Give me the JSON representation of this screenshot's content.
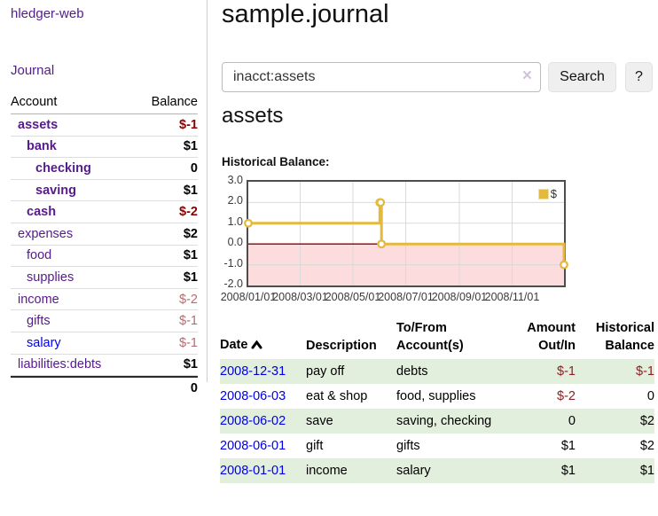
{
  "sidebar": {
    "app_title": "hledger-web",
    "nav": {
      "journal_label": "Journal"
    },
    "table": {
      "account_header": "Account",
      "balance_header": "Balance"
    },
    "accounts": [
      {
        "name": "assets",
        "indent": 0,
        "bold": true,
        "balance": "$-1",
        "balance_style": "negative-strong",
        "link_style": "purple"
      },
      {
        "name": "bank",
        "indent": 1,
        "bold": true,
        "balance": "$1",
        "balance_style": "normal",
        "link_style": "purple"
      },
      {
        "name": "checking",
        "indent": 2,
        "bold": true,
        "balance": "0",
        "balance_style": "normal",
        "link_style": "purple"
      },
      {
        "name": "saving",
        "indent": 2,
        "bold": true,
        "balance": "$1",
        "balance_style": "normal",
        "link_style": "purple"
      },
      {
        "name": "cash",
        "indent": 1,
        "bold": true,
        "balance": "$-2",
        "balance_style": "negative-strong",
        "link_style": "purple"
      },
      {
        "name": "expenses",
        "indent": 0,
        "bold": false,
        "balance": "$2",
        "balance_style": "normal",
        "link_style": "purple"
      },
      {
        "name": "food",
        "indent": 1,
        "bold": false,
        "balance": "$1",
        "balance_style": "normal",
        "link_style": "purple"
      },
      {
        "name": "supplies",
        "indent": 1,
        "bold": false,
        "balance": "$1",
        "balance_style": "normal",
        "link_style": "purple"
      },
      {
        "name": "income",
        "indent": 0,
        "bold": false,
        "balance": "$-2",
        "balance_style": "negative-soft",
        "link_style": "purple"
      },
      {
        "name": "gifts",
        "indent": 1,
        "bold": false,
        "balance": "$-1",
        "balance_style": "negative-soft",
        "link_style": "purple"
      },
      {
        "name": "salary",
        "indent": 1,
        "bold": false,
        "balance": "$-1",
        "balance_style": "negative-soft",
        "link_style": "blue"
      },
      {
        "name": "liabilities:debts",
        "indent": 0,
        "bold": false,
        "balance": "$1",
        "balance_style": "normal",
        "link_style": "purple"
      }
    ],
    "total": "0"
  },
  "main": {
    "title": "sample.journal",
    "search": {
      "value": "inacct:assets",
      "clear_icon": "×",
      "button_label": "Search",
      "help_label": "?"
    },
    "account_heading": "assets",
    "chart_label": "Historical Balance:"
  },
  "chart_data": {
    "type": "line",
    "style": "step",
    "title": "Historical Balance of assets",
    "series": [
      {
        "name": "$",
        "color": "#e3ba3e",
        "points": [
          [
            "2008-01-01",
            1
          ],
          [
            "2008-06-01",
            2
          ],
          [
            "2008-06-02",
            2
          ],
          [
            "2008-06-03",
            0
          ],
          [
            "2008-12-31",
            -1
          ]
        ]
      }
    ],
    "xlim": [
      "2008-01-01",
      "2008-12-31"
    ],
    "ylim": [
      -2,
      3
    ],
    "yticks": [
      3,
      2,
      1,
      0,
      -1,
      -2
    ],
    "xticks": [
      "2008/01/01",
      "2008/03/01",
      "2008/05/01",
      "2008/07/01",
      "2008/09/01",
      "2008/11/01"
    ],
    "grid": true,
    "legend_position": "top-right",
    "zero_line_color": "#8b0000",
    "negative_region_color": "#fcdcdc",
    "grid_color": "#d9d9d9"
  },
  "table": {
    "headers": {
      "date": "Date",
      "description": "Description",
      "accounts": "To/From\nAccount(s)",
      "amount": "Amount\nOut/In",
      "balance": "Historical\nBalance"
    },
    "rows": [
      {
        "date": "2008-12-31",
        "description": "pay off",
        "accounts": "debts",
        "amount": "$-1",
        "balance": "$-1"
      },
      {
        "date": "2008-06-03",
        "description": "eat & shop",
        "accounts": "food, supplies",
        "amount": "$-2",
        "balance": "0"
      },
      {
        "date": "2008-06-02",
        "description": "save",
        "accounts": "saving, checking",
        "amount": "0",
        "balance": "$2"
      },
      {
        "date": "2008-06-01",
        "description": "gift",
        "accounts": "gifts",
        "amount": "$1",
        "balance": "$2"
      },
      {
        "date": "2008-01-01",
        "description": "income",
        "accounts": "salary",
        "amount": "$1",
        "balance": "$1"
      }
    ]
  }
}
